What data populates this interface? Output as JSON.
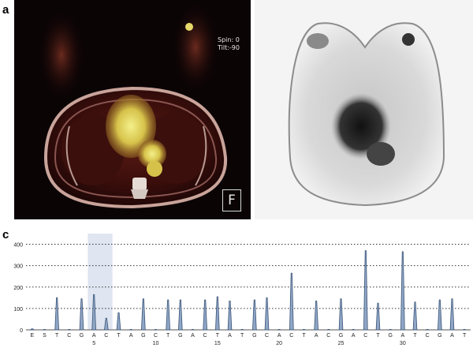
{
  "panels": {
    "a": {
      "letter": "a",
      "spin_label": "Spin: 0",
      "tilt_label": "Tilt:-90",
      "orientation": "F"
    },
    "b": {
      "letter": "b"
    },
    "c": {
      "letter": "c"
    }
  },
  "chart_data": {
    "type": "bar",
    "title": "",
    "xlabel": "",
    "ylabel": "",
    "ylim": [
      0,
      450
    ],
    "yticks": [
      0,
      100,
      200,
      300,
      400
    ],
    "grid": true,
    "highlight_positions": [
      5,
      6
    ],
    "bases": [
      "E",
      "S",
      "T",
      "C",
      "G",
      "A",
      "C",
      "T",
      "A",
      "G",
      "C",
      "T",
      "G",
      "A",
      "C",
      "T",
      "A",
      "T",
      "G",
      "C",
      "A",
      "C",
      "T",
      "A",
      "C",
      "G",
      "A",
      "C",
      "T",
      "G",
      "A",
      "T",
      "C",
      "G",
      "A",
      "T"
    ],
    "position_labels": [
      {
        "position": 5,
        "label": "5"
      },
      {
        "position": 10,
        "label": "10"
      },
      {
        "position": 15,
        "label": "15"
      },
      {
        "position": 20,
        "label": "20"
      },
      {
        "position": 25,
        "label": "25"
      },
      {
        "position": 30,
        "label": "30"
      }
    ],
    "values": [
      5,
      0,
      150,
      0,
      145,
      165,
      55,
      80,
      0,
      145,
      0,
      140,
      140,
      0,
      140,
      155,
      135,
      0,
      140,
      150,
      0,
      265,
      0,
      135,
      0,
      145,
      0,
      370,
      125,
      0,
      365,
      130,
      0,
      140,
      145,
      0
    ]
  }
}
